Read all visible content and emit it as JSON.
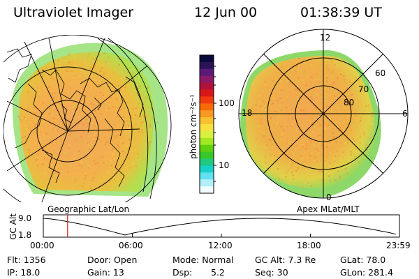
{
  "header": {
    "instrument": "Ultraviolet Imager",
    "date": "12 Jun 00",
    "time": "01:38:39 UT"
  },
  "left_panel": {
    "caption": "Geographic Lat/Lon"
  },
  "right_panel": {
    "caption": "Apex MLat/MLT",
    "mlt_labels": {
      "top": "12",
      "right": "6",
      "bottom": "0",
      "left": "18"
    },
    "lat_labels": [
      "60",
      "70",
      "80"
    ]
  },
  "colorbar": {
    "label": "photon cm⁻²s⁻¹",
    "ticks": [
      "100",
      "10"
    ],
    "colors": [
      "#0a0a3a",
      "#2a1458",
      "#5a1a78",
      "#8a1a68",
      "#b0123a",
      "#d81818",
      "#f03a10",
      "#f86a08",
      "#f89820",
      "#f8c030",
      "#f8e040",
      "#d8f040",
      "#a0e820",
      "#60d010",
      "#38c828",
      "#20c880",
      "#18d0c8",
      "#60e0f0",
      "#b0f0f8",
      "#f0fcff"
    ]
  },
  "altitude_plot": {
    "ylabel": "GC Alt",
    "yticks": [
      "9.0",
      "1.8"
    ],
    "xticks": [
      "00:00",
      "06:00",
      "12:00",
      "18:00",
      "23:59"
    ],
    "marker_time_hours": 1.64
  },
  "status": {
    "flt": "Flt: 1356",
    "ip": "IP: 18.0",
    "door": "Door: Open",
    "gain": "Gain: 13",
    "mode": "Mode: Normal",
    "dsp_label": "Dsp:",
    "dsp_value": "5.2",
    "gc_alt": "GC Alt: 7.3 Re",
    "seq": "Seq: 30",
    "glat": "GLat:  78.0",
    "glon": "GLon: 281.4"
  },
  "colors": {
    "aurora_main": "#f0a040",
    "aurora_edge": "#d8e048",
    "aurora_dim": "#7fd86a",
    "marker": "#d02020"
  }
}
